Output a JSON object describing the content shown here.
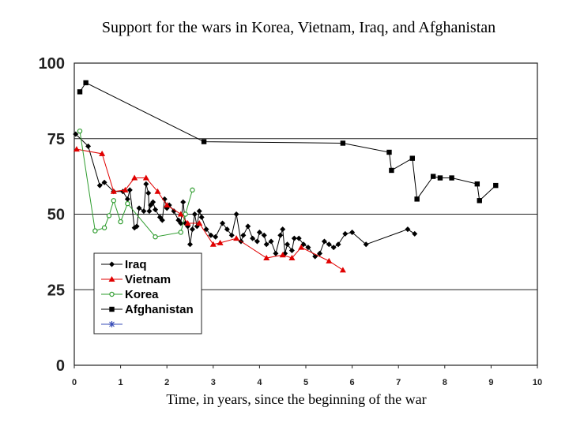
{
  "chart_data": {
    "type": "line",
    "title": "Support for the wars in Korea, Vietnam, Iraq, and Afghanistan",
    "xlabel": "Time, in years, since the beginning of the war",
    "ylabel": "",
    "xlim": [
      0,
      10
    ],
    "ylim": [
      0,
      100
    ],
    "x_ticks": [
      "0",
      "1",
      "2",
      "3",
      "4",
      "5",
      "6",
      "7",
      "8",
      "9",
      "10"
    ],
    "y_ticks": [
      "0",
      "25",
      "50",
      "75",
      "100"
    ],
    "grid": "horizontal",
    "legend_position": "bottom-left",
    "series": [
      {
        "name": "Iraq",
        "color": "#000000",
        "marker": "diamond",
        "points": [
          [
            0.03,
            76.5
          ],
          [
            0.3,
            72.5
          ],
          [
            0.55,
            59.5
          ],
          [
            0.65,
            60.5
          ],
          [
            0.85,
            57.5
          ],
          [
            1.05,
            57.5
          ],
          [
            1.15,
            55
          ],
          [
            1.2,
            58
          ],
          [
            1.3,
            45.5
          ],
          [
            1.35,
            46
          ],
          [
            1.4,
            52
          ],
          [
            1.5,
            51
          ],
          [
            1.55,
            60
          ],
          [
            1.6,
            57
          ],
          [
            1.62,
            51
          ],
          [
            1.65,
            53
          ],
          [
            1.7,
            54
          ],
          [
            1.75,
            51.5
          ],
          [
            1.85,
            49
          ],
          [
            1.9,
            48
          ],
          [
            1.95,
            55
          ],
          [
            2.0,
            52
          ],
          [
            2.05,
            53
          ],
          [
            2.15,
            51
          ],
          [
            2.25,
            48
          ],
          [
            2.3,
            47
          ],
          [
            2.35,
            54
          ],
          [
            2.4,
            47
          ],
          [
            2.45,
            46
          ],
          [
            2.5,
            40
          ],
          [
            2.55,
            45
          ],
          [
            2.6,
            50
          ],
          [
            2.65,
            46
          ],
          [
            2.7,
            51
          ],
          [
            2.75,
            49
          ],
          [
            2.85,
            45
          ],
          [
            2.95,
            43
          ],
          [
            3.05,
            42.5
          ],
          [
            3.2,
            47
          ],
          [
            3.3,
            45
          ],
          [
            3.4,
            43
          ],
          [
            3.5,
            50
          ],
          [
            3.6,
            41
          ],
          [
            3.65,
            43
          ],
          [
            3.75,
            46
          ],
          [
            3.85,
            42
          ],
          [
            3.95,
            41
          ],
          [
            4.0,
            44
          ],
          [
            4.1,
            43
          ],
          [
            4.15,
            40
          ],
          [
            4.25,
            41
          ],
          [
            4.35,
            37
          ],
          [
            4.45,
            43
          ],
          [
            4.5,
            45
          ],
          [
            4.55,
            37
          ],
          [
            4.6,
            40
          ],
          [
            4.7,
            38
          ],
          [
            4.75,
            42
          ],
          [
            4.85,
            42
          ],
          [
            4.95,
            40
          ],
          [
            5.05,
            39
          ],
          [
            5.2,
            36
          ],
          [
            5.3,
            37
          ],
          [
            5.4,
            41
          ],
          [
            5.5,
            40
          ],
          [
            5.6,
            39
          ],
          [
            5.7,
            40
          ],
          [
            5.85,
            43.5
          ],
          [
            6.0,
            44
          ],
          [
            6.3,
            40
          ],
          [
            7.2,
            45
          ],
          [
            7.35,
            43.5
          ]
        ]
      },
      {
        "name": "Vietnam",
        "color": "#e00000",
        "marker": "triangle",
        "points": [
          [
            0.05,
            71.5
          ],
          [
            0.6,
            70
          ],
          [
            0.85,
            57.5
          ],
          [
            1.1,
            58
          ],
          [
            1.3,
            62
          ],
          [
            1.55,
            62
          ],
          [
            1.8,
            57.5
          ],
          [
            2.0,
            53
          ],
          [
            2.3,
            50
          ],
          [
            2.45,
            47
          ],
          [
            2.7,
            47
          ],
          [
            3.0,
            40
          ],
          [
            3.15,
            40.5
          ],
          [
            3.5,
            42
          ],
          [
            4.15,
            35.5
          ],
          [
            4.5,
            36.5
          ],
          [
            4.7,
            35.5
          ],
          [
            4.9,
            39
          ],
          [
            5.5,
            34.5
          ],
          [
            5.8,
            31.5
          ]
        ]
      },
      {
        "name": "Korea",
        "color": "#2e9c2e",
        "marker": "open-circle",
        "points": [
          [
            0.12,
            77.5
          ],
          [
            0.45,
            44.5
          ],
          [
            0.65,
            45.5
          ],
          [
            0.75,
            49.5
          ],
          [
            0.85,
            54.5
          ],
          [
            1.0,
            47.5
          ],
          [
            1.15,
            53.5
          ],
          [
            1.75,
            42.5
          ],
          [
            2.3,
            44
          ],
          [
            2.4,
            50
          ],
          [
            2.55,
            58
          ]
        ]
      },
      {
        "name": "Afghanistan",
        "color": "#000000",
        "marker": "square",
        "points": [
          [
            0.12,
            90.5
          ],
          [
            0.25,
            93.5
          ],
          [
            2.8,
            74
          ],
          [
            5.8,
            73.5
          ],
          [
            6.8,
            70.5
          ],
          [
            6.85,
            64.5
          ],
          [
            7.3,
            68.5
          ],
          [
            7.4,
            55
          ],
          [
            7.75,
            62.5
          ],
          [
            7.9,
            62
          ],
          [
            8.15,
            62
          ],
          [
            8.7,
            60
          ],
          [
            8.75,
            54.5
          ],
          [
            9.1,
            59.5
          ]
        ]
      },
      {
        "name": "",
        "color": "#3b4fb8",
        "marker": "asterisk",
        "points": []
      }
    ]
  }
}
